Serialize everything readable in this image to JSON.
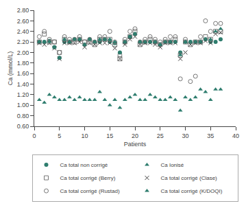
{
  "chart_data": {
    "type": "scatter",
    "xlabel": "Patients",
    "ylabel": "Ca (mmol/L)",
    "x": [
      1,
      2,
      3,
      4,
      5,
      6,
      7,
      8,
      9,
      10,
      11,
      12,
      13,
      14,
      15,
      16,
      17,
      18,
      19,
      20,
      21,
      22,
      23,
      24,
      25,
      26,
      27,
      28,
      29,
      30,
      31,
      32,
      33,
      34,
      35,
      36,
      37
    ],
    "xlim": [
      0,
      40
    ],
    "ylim": [
      0.6,
      2.8
    ],
    "xticks": [
      0,
      5,
      10,
      15,
      20,
      25,
      30,
      35,
      40
    ],
    "yticks": [
      {
        "value": 0.6,
        "label": "0.60"
      },
      {
        "value": 0.8,
        "label": "0.80"
      },
      {
        "value": 1.0,
        "label": "1.00"
      },
      {
        "value": 1.2,
        "label": "1.20"
      },
      {
        "value": 1.4,
        "label": "1.40"
      },
      {
        "value": 1.6,
        "label": "1.60"
      },
      {
        "value": 1.8,
        "label": "1.80"
      },
      {
        "value": 2.0,
        "label": "2.00"
      },
      {
        "value": 2.2,
        "label": "2.20"
      },
      {
        "value": 2.4,
        "label": "2.40"
      },
      {
        "value": 2.6,
        "label": "2.60"
      },
      {
        "value": 2.8,
        "label": "2.80"
      }
    ],
    "grid": false,
    "legend": "bottom",
    "series": [
      {
        "name": "Ca total non corrigé",
        "color": "#2e7d6e",
        "marker": "circle",
        "values": [
          2.2,
          2.2,
          2.22,
          2.1,
          1.9,
          2.2,
          2.2,
          2.25,
          2.25,
          2.15,
          2.25,
          2.2,
          2.2,
          2.25,
          2.2,
          2.18,
          2.0,
          2.2,
          2.3,
          2.35,
          2.2,
          2.2,
          2.2,
          2.2,
          2.15,
          2.2,
          2.2,
          2.2,
          2.0,
          2.2,
          2.2,
          2.2,
          2.2,
          2.25,
          2.2,
          2.2,
          2.25
        ]
      },
      {
        "name": "Ca Ionisé",
        "color": "#2e7d6e",
        "marker": "triangle-up",
        "values": [
          1.1,
          1.05,
          1.2,
          1.15,
          1.1,
          1.1,
          1.15,
          1.1,
          1.15,
          1.1,
          1.1,
          1.1,
          1.25,
          1.1,
          1.0,
          1.1,
          0.95,
          1.1,
          1.15,
          1.2,
          1.1,
          1.1,
          1.2,
          1.15,
          1.1,
          1.1,
          1.15,
          1.1,
          0.9,
          1.15,
          1.1,
          1.15,
          1.3,
          1.25,
          1.1,
          1.3,
          1.3
        ]
      },
      {
        "name": "Ca total corrigé (Berry)",
        "color": "#777777",
        "marker": "square-open",
        "values": [
          2.2,
          2.35,
          2.2,
          2.2,
          2.0,
          2.25,
          2.2,
          2.2,
          2.25,
          2.2,
          2.2,
          2.15,
          2.25,
          2.25,
          2.25,
          2.15,
          1.88,
          2.2,
          2.3,
          2.4,
          2.15,
          2.2,
          2.25,
          2.2,
          2.15,
          2.2,
          2.2,
          2.25,
          1.95,
          2.2,
          2.15,
          2.2,
          2.2,
          2.3,
          2.25,
          2.4,
          2.4
        ]
      },
      {
        "name": "Ca total corrigé (Clase)",
        "color": "#444444",
        "marker": "x-thin-open",
        "values": [
          2.18,
          2.15,
          2.18,
          2.08,
          1.88,
          2.18,
          2.18,
          2.18,
          2.2,
          2.1,
          2.18,
          2.15,
          2.18,
          2.18,
          2.18,
          2.08,
          1.88,
          2.15,
          2.25,
          2.3,
          2.15,
          2.18,
          2.18,
          2.15,
          2.1,
          2.18,
          2.18,
          2.18,
          1.88,
          2.0,
          2.15,
          2.18,
          2.18,
          2.22,
          2.18,
          2.35,
          2.38
        ]
      },
      {
        "name": "Ca total corrigé (Rustad)",
        "color": "#777777",
        "marker": "circle-open",
        "values": [
          2.3,
          2.4,
          2.25,
          2.2,
          2.0,
          2.3,
          2.25,
          2.25,
          2.3,
          2.2,
          2.25,
          2.2,
          2.3,
          2.3,
          2.4,
          2.2,
          1.95,
          2.25,
          2.4,
          2.45,
          2.2,
          2.25,
          2.3,
          2.25,
          2.2,
          2.25,
          2.3,
          2.3,
          1.5,
          2.25,
          1.45,
          1.55,
          2.3,
          2.6,
          2.4,
          2.55,
          2.55
        ]
      },
      {
        "name": "Ca total corrigé (K/DOQI)",
        "color": "#2e7d6e",
        "marker": "triangle-up",
        "values": [
          2.2,
          2.2,
          2.2,
          2.1,
          1.9,
          2.25,
          2.2,
          2.25,
          2.25,
          2.15,
          2.25,
          2.2,
          2.25,
          2.25,
          2.25,
          2.2,
          2.0,
          2.2,
          2.3,
          2.35,
          2.2,
          2.2,
          2.2,
          2.2,
          2.15,
          2.2,
          2.2,
          2.2,
          1.95,
          2.2,
          2.2,
          2.2,
          2.2,
          2.25,
          2.25,
          2.4,
          2.45
        ]
      }
    ]
  }
}
